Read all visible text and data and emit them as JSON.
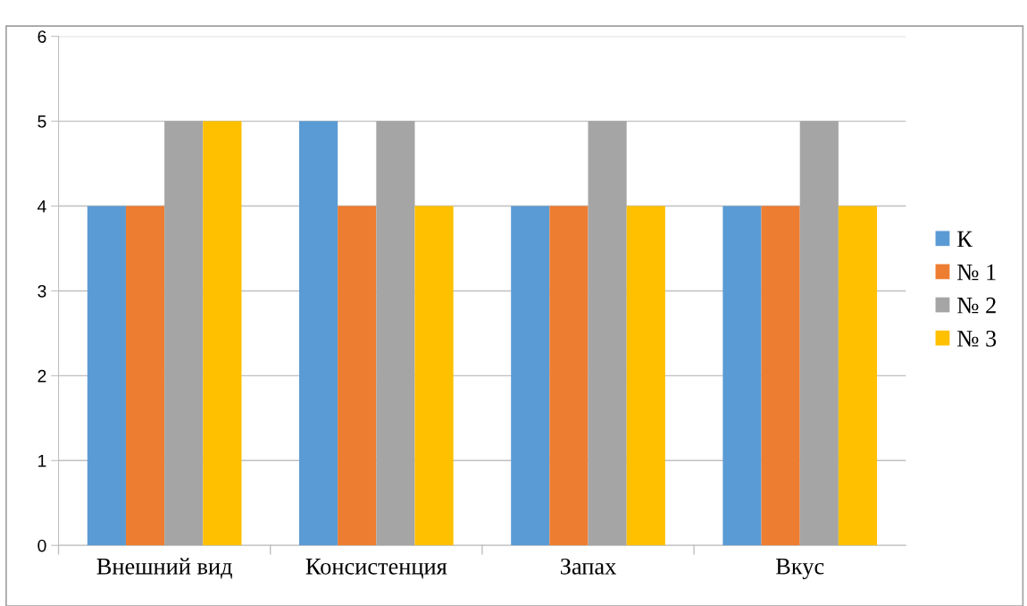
{
  "chart_data": {
    "type": "bar",
    "categories": [
      "Внешний вид",
      "Консистенция",
      "Запах",
      "Вкус"
    ],
    "series": [
      {
        "name": "К",
        "color": "#5b9bd5",
        "values": [
          4,
          5,
          4,
          4
        ]
      },
      {
        "name": "№ 1",
        "color": "#ed7d31",
        "values": [
          4,
          4,
          4,
          4
        ]
      },
      {
        "name": "№ 2",
        "color": "#a5a5a5",
        "values": [
          5,
          5,
          5,
          5
        ]
      },
      {
        "name": "№ 3",
        "color": "#ffc000",
        "values": [
          5,
          4,
          4,
          4
        ]
      }
    ],
    "ylim": [
      0,
      6
    ],
    "yticks": [
      0,
      1,
      2,
      3,
      4,
      5,
      6
    ],
    "grid": "y",
    "legend": "right"
  }
}
